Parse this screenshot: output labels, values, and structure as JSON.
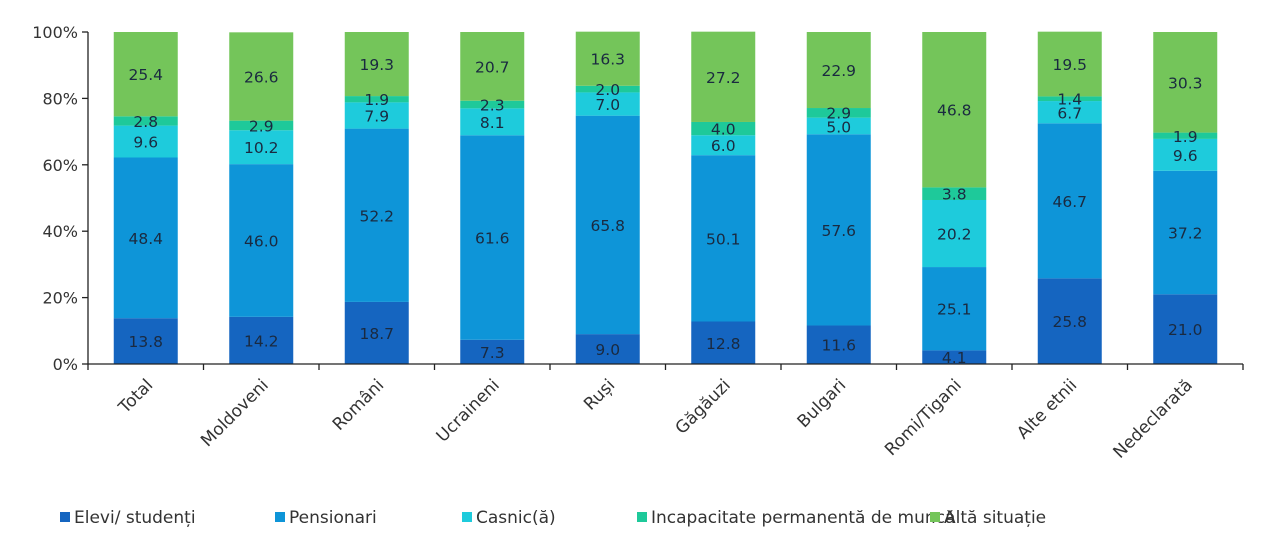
{
  "chart_data": {
    "type": "bar",
    "stacked": true,
    "title": "",
    "xlabel": "",
    "ylabel": "",
    "ylim": [
      0,
      100
    ],
    "yticks": [
      "0%",
      "20%",
      "40%",
      "60%",
      "80%",
      "100%"
    ],
    "grid": false,
    "legend_position": "bottom",
    "categories": [
      "Total",
      "Moldoveni",
      "Români",
      "Ucraineni",
      "Ruși",
      "Găgăuzi",
      "Bulgari",
      "Romi/Tigani",
      "Alte etnii",
      "Nedeclarată"
    ],
    "series": [
      {
        "name": "Elevi/ studenți",
        "color": "#1565c0",
        "values": [
          13.8,
          14.2,
          18.7,
          7.3,
          9.0,
          12.8,
          11.6,
          4.1,
          25.8,
          21.0
        ],
        "labels": [
          "13.8",
          "14.2",
          "18.7",
          "7.3",
          "9.0",
          "12.8",
          "11.6",
          "4.1",
          "25.8",
          "21.0"
        ]
      },
      {
        "name": "Pensionari",
        "color": "#0e95d8",
        "values": [
          48.4,
          46.0,
          52.2,
          61.6,
          65.8,
          50.1,
          57.6,
          25.1,
          46.7,
          37.2
        ],
        "labels": [
          "48.4",
          "46.0",
          "52.2",
          "61.6",
          "65.8",
          "50.1",
          "57.6",
          "25.1",
          "46.7",
          "37.2"
        ]
      },
      {
        "name": "Casnic(ă)",
        "color": "#1ecbdc",
        "values": [
          9.6,
          10.2,
          7.9,
          8.1,
          7.0,
          6.0,
          5.0,
          20.2,
          6.7,
          9.6
        ],
        "labels": [
          "9.6",
          "10.2",
          "7.9",
          "8.1",
          "7.0",
          "6.0",
          "5.0",
          "20.2",
          "6.7",
          "9.6"
        ]
      },
      {
        "name": "Incapacitate permanentă de muncă",
        "color": "#1ec99a",
        "values": [
          2.8,
          2.9,
          1.9,
          2.3,
          2.0,
          4.0,
          2.9,
          3.8,
          1.4,
          1.9
        ],
        "labels": [
          "2.8",
          "2.9",
          "1.9",
          "2.3",
          "2.0",
          "4.0",
          "2.9",
          "3.8",
          "1.4",
          "1.9"
        ]
      },
      {
        "name": "Altă situație",
        "color": "#74c55a",
        "values": [
          25.4,
          26.6,
          19.3,
          20.7,
          16.3,
          27.2,
          22.9,
          46.8,
          19.5,
          30.3
        ],
        "labels": [
          "25.4",
          "26.6",
          "19.3",
          "20.7",
          "16.3",
          "27.2",
          "22.9",
          "46.8",
          "19.5",
          "30.3"
        ]
      }
    ]
  }
}
